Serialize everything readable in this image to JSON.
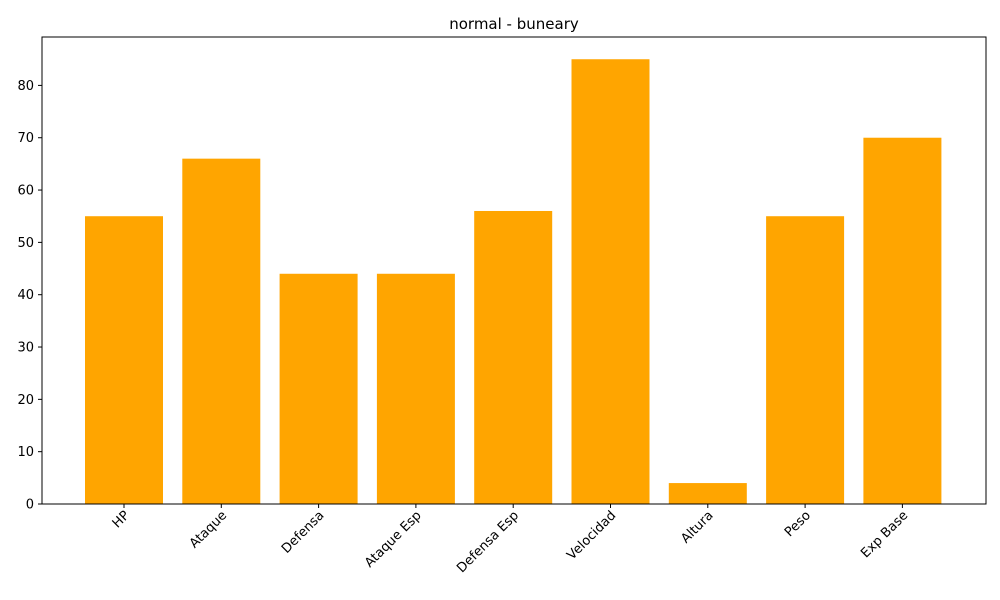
{
  "chart_data": {
    "type": "bar",
    "title": "normal - buneary",
    "xlabel": "",
    "ylabel": "",
    "categories": [
      "HP",
      "Ataque",
      "Defensa",
      "Ataque Esp",
      "Defensa Esp",
      "Velocidad",
      "Altura",
      "Peso",
      "Exp Base"
    ],
    "values": [
      55,
      66,
      44,
      44,
      56,
      85,
      4,
      55,
      70
    ],
    "ylim": [
      0,
      89.25
    ],
    "yticks": [
      0,
      10,
      20,
      30,
      40,
      50,
      60,
      70,
      80
    ],
    "bar_color": "#FFA500",
    "grid": false
  }
}
